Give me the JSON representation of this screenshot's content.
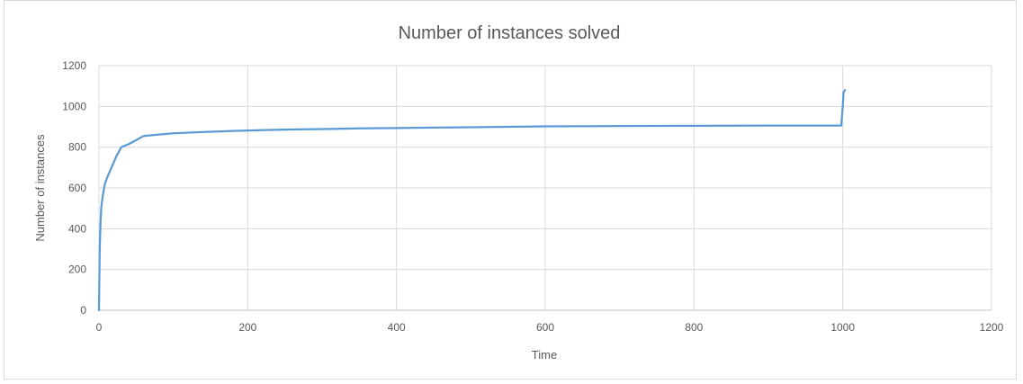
{
  "chart_data": {
    "type": "line",
    "title": "Number of instances solved",
    "xlabel": "Time",
    "ylabel": "Number of instances",
    "xlim": [
      0,
      1200
    ],
    "ylim": [
      0,
      1200
    ],
    "xticks": [
      0,
      200,
      400,
      600,
      800,
      1000,
      1200
    ],
    "yticks": [
      0,
      200,
      400,
      600,
      800,
      1000,
      1200
    ],
    "grid": "vertical and horizontal",
    "legend": "none",
    "series": [
      {
        "color": "#5b9bd5",
        "x": [
          0,
          1,
          2,
          3,
          5,
          8,
          12,
          18,
          24,
          30,
          40,
          50,
          60,
          80,
          100,
          130,
          160,
          200,
          250,
          300,
          350,
          400,
          450,
          500,
          550,
          600,
          650,
          700,
          800,
          900,
          998,
          1000,
          1001,
          1003
        ],
        "y": [
          0,
          300,
          420,
          500,
          560,
          620,
          660,
          710,
          760,
          800,
          815,
          835,
          855,
          862,
          868,
          873,
          877,
          882,
          886,
          889,
          892,
          894,
          896,
          898,
          900,
          902,
          903,
          904,
          905,
          906,
          906,
          1000,
          1068,
          1080
        ]
      }
    ]
  }
}
